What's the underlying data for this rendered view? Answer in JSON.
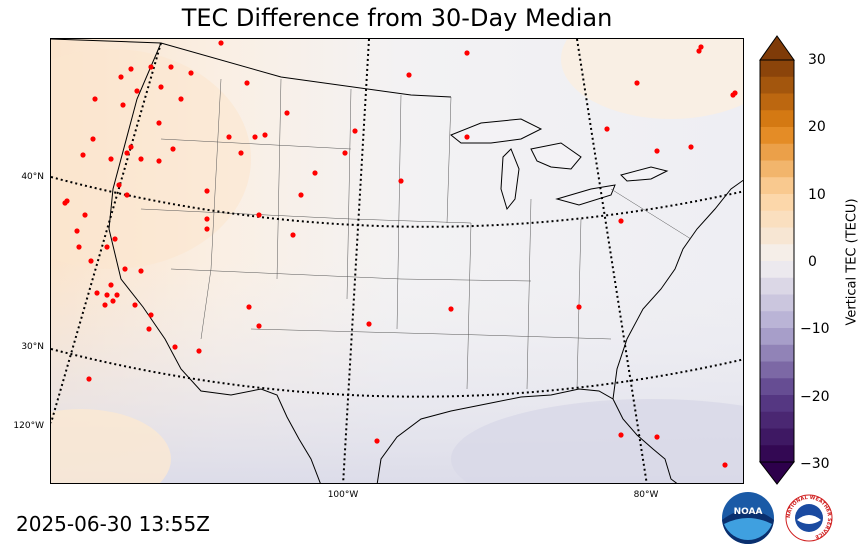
{
  "title": "TEC Difference from 30-Day Median",
  "timestamp": "2025-06-30 13:55Z",
  "colorbar": {
    "label": "Vertical TEC (TECU)",
    "ticks": [
      30,
      20,
      10,
      0,
      -10,
      -20,
      -30
    ],
    "range": [
      -30,
      30
    ],
    "colormap": "purple-white-orange (PuOr reversed)"
  },
  "map": {
    "region": "Continental United States",
    "lat_labels": [
      "40°N",
      "30°N",
      "120°W"
    ],
    "lon_labels": [
      "100°W",
      "80°W"
    ],
    "graticule_style": "dotted",
    "station_marker_color": "#ff0000",
    "positive_anomaly_color": "#fbe8d4",
    "negative_anomaly_color": "#e0e0ec"
  },
  "logos": {
    "noaa": "NOAA",
    "nws": "NATIONAL WEATHER SERVICE"
  }
}
